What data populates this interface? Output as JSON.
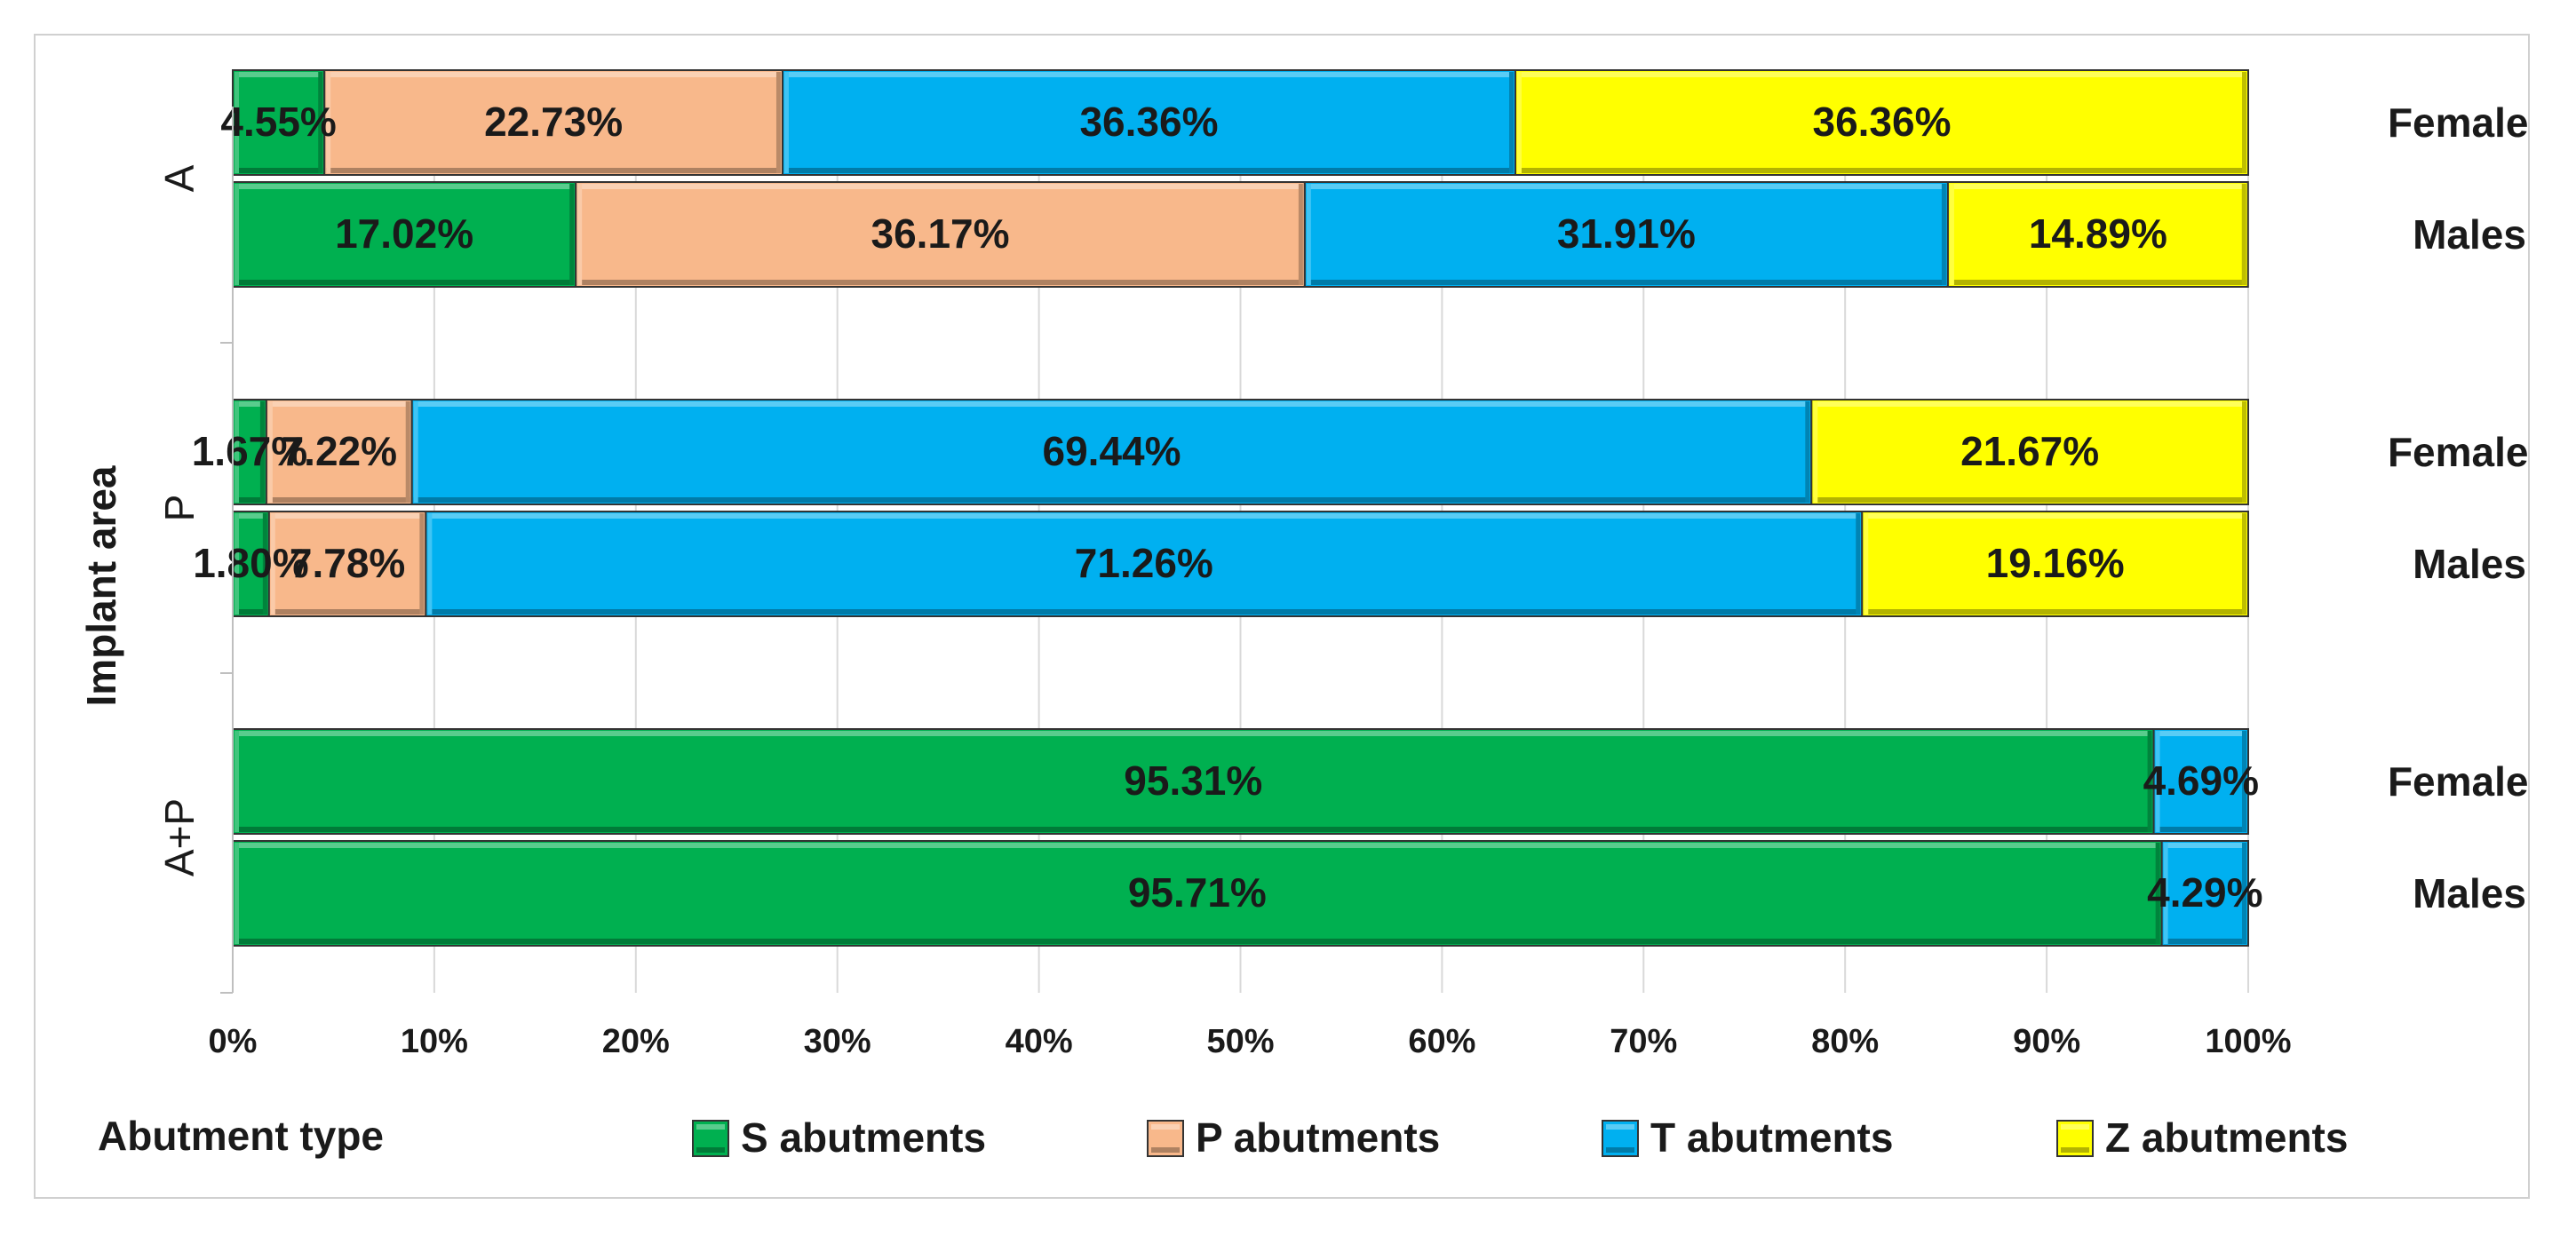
{
  "chart_data": {
    "type": "bar",
    "orientation": "horizontal",
    "stacked": "percent",
    "ylabel": "Implant area",
    "xlabel": "",
    "xlim": [
      0,
      100
    ],
    "x_tick_labels": [
      "0%",
      "10%",
      "20%",
      "30%",
      "40%",
      "50%",
      "60%",
      "70%",
      "80%",
      "90%",
      "100%"
    ],
    "grid": "vertical",
    "legend": {
      "title": "Abutment type",
      "position": "bottom"
    },
    "groups": [
      {
        "label": "A",
        "bars": [
          {
            "label": "Females",
            "values": [
              4.55,
              22.73,
              36.36,
              36.36
            ],
            "texts": [
              "4.55%",
              "22.73%",
              "36.36%",
              "36.36%"
            ]
          },
          {
            "label": "Males",
            "values": [
              17.02,
              36.17,
              31.91,
              14.89
            ],
            "texts": [
              "17.02%",
              "36.17%",
              "31.91%",
              "14.89%"
            ]
          }
        ]
      },
      {
        "label": "P",
        "bars": [
          {
            "label": "Females",
            "values": [
              1.67,
              7.22,
              69.44,
              21.67
            ],
            "texts": [
              "1.67%",
              "7.22%",
              "69.44%",
              "21.67%"
            ]
          },
          {
            "label": "Males",
            "values": [
              1.8,
              7.78,
              71.26,
              19.16
            ],
            "texts": [
              "1.80%",
              "7.78%",
              "71.26%",
              "19.16%"
            ]
          }
        ]
      },
      {
        "label": "A+P",
        "bars": [
          {
            "label": "Females",
            "values": [
              95.31,
              0,
              4.69,
              0
            ],
            "texts": [
              "95.31%",
              "",
              "4.69%",
              ""
            ]
          },
          {
            "label": "Males",
            "values": [
              95.71,
              0,
              4.29,
              0
            ],
            "texts": [
              "95.71%",
              "",
              "4.29%",
              ""
            ]
          }
        ]
      }
    ],
    "series": [
      {
        "name": "S abutments",
        "color": "#00b050"
      },
      {
        "name": "P abutments",
        "color": "#f8b88b"
      },
      {
        "name": "T abutments",
        "color": "#00b0f0"
      },
      {
        "name": "Z abutments",
        "color": "#ffff00"
      }
    ]
  }
}
